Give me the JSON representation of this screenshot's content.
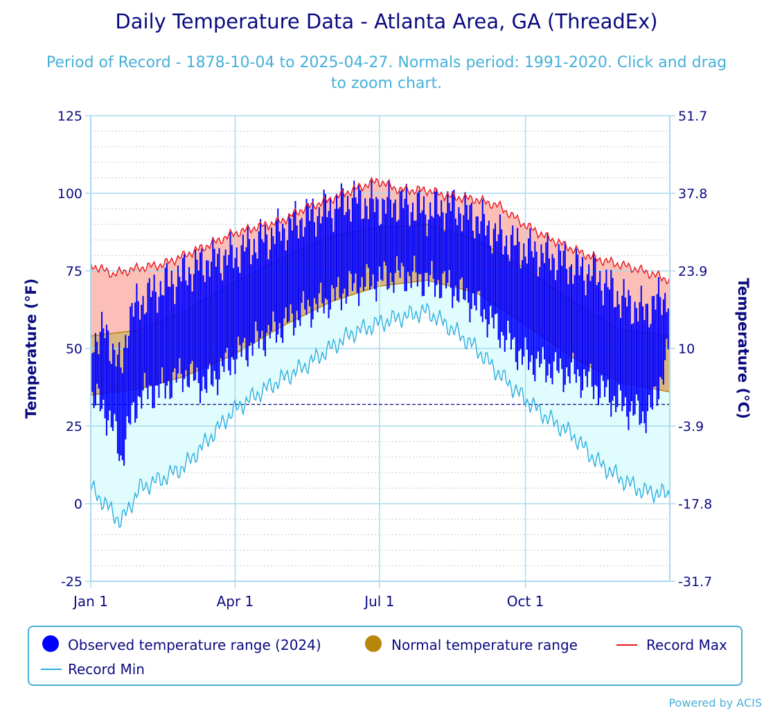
{
  "title": "Daily Temperature Data - Atlanta Area, GA (ThreadEx)",
  "subtitle": "Period of Record - 1878-10-04 to 2025-04-27. Normals period: 1991-2020. Click and drag to zoom chart.",
  "credit": "Powered by ACIS",
  "colors": {
    "observed": "#0000ff",
    "normal_fill": "#d9b783",
    "normal_line": "#b8860b",
    "record_max_fill": "#fbbfb8",
    "record_max_line": "#e8141c",
    "record_min_fill": "#e0fcfc",
    "record_min_line": "#29aee0",
    "freezing_line": "#0a0a80",
    "axis_text": "#0a0a80"
  },
  "legend": [
    {
      "label": "Observed temperature range (2024)",
      "marker": "circle",
      "color": "#0000ff"
    },
    {
      "label": "Normal temperature range",
      "marker": "circle",
      "color": "#b8860b"
    },
    {
      "label": "Record Max",
      "marker": "line",
      "color": "#e8141c"
    },
    {
      "label": "Record Min",
      "marker": "line",
      "color": "#29aee0"
    }
  ],
  "chart_data": {
    "type": "area",
    "title": "Daily Temperature Data - Atlanta Area, GA (ThreadEx)",
    "ylabel": "Temperature (°F)",
    "ylabel_right": "Temperature (°C)",
    "ylim": [
      -25,
      125
    ],
    "y_ticks": [
      -25,
      0,
      25,
      50,
      75,
      100,
      125
    ],
    "y_ticks_right": [
      "-31.7",
      "-17.8",
      "-3.9",
      "10",
      "23.9",
      "37.8",
      "51.7"
    ],
    "x_ticks": [
      {
        "label": "Jan 1",
        "day": 1
      },
      {
        "label": "Apr 1",
        "day": 92
      },
      {
        "label": "Jul 1",
        "day": 183
      },
      {
        "label": "Oct 1",
        "day": 275
      }
    ],
    "x_range_days": [
      1,
      366
    ],
    "freezing_line_f": 32,
    "grid": true,
    "legend_position": "bottom",
    "series": [
      {
        "name": "Record Max",
        "kind": "line",
        "x": [
          1,
          15,
          32,
          46,
          60,
          74,
          91,
          105,
          121,
          135,
          152,
          166,
          176,
          182,
          196,
          213,
          227,
          244,
          258,
          274,
          288,
          305,
          319,
          335,
          349,
          366
        ],
        "values": [
          77,
          74,
          76,
          77,
          80,
          83,
          87,
          89,
          91,
          95,
          98,
          101,
          103,
          104,
          101,
          101,
          99,
          98,
          96,
          90,
          86,
          82,
          79,
          77,
          75,
          72
        ]
      },
      {
        "name": "Record Min",
        "kind": "line",
        "x": [
          1,
          10,
          20,
          32,
          46,
          60,
          74,
          91,
          105,
          121,
          135,
          152,
          166,
          182,
          196,
          213,
          227,
          244,
          258,
          274,
          288,
          305,
          319,
          335,
          349,
          366
        ],
        "values": [
          5,
          0,
          -6,
          5,
          8,
          12,
          20,
          30,
          35,
          40,
          44,
          50,
          55,
          58,
          60,
          62,
          57,
          50,
          42,
          34,
          28,
          22,
          14,
          8,
          4,
          3
        ]
      },
      {
        "name": "Normal temperature range",
        "kind": "band",
        "x": [
          1,
          32,
          60,
          91,
          121,
          152,
          182,
          213,
          244,
          274,
          305,
          335,
          366
        ],
        "low": [
          35,
          37,
          41,
          48,
          57,
          65,
          70,
          72,
          68,
          58,
          47,
          39,
          36
        ],
        "high": [
          54,
          56,
          62,
          71,
          79,
          86,
          89,
          90,
          85,
          76,
          65,
          56,
          54
        ]
      },
      {
        "name": "Observed temperature range (2024)",
        "kind": "daily_range",
        "x": [
          1,
          10,
          17,
          20,
          25,
          32,
          46,
          60,
          74,
          91,
          105,
          121,
          135,
          152,
          166,
          182,
          196,
          213,
          227,
          244,
          258,
          274,
          288,
          300,
          305,
          319,
          335,
          349,
          355,
          366
        ],
        "low": [
          35,
          30,
          22,
          14,
          25,
          35,
          37,
          42,
          38,
          47,
          52,
          57,
          62,
          66,
          70,
          72,
          74,
          72,
          70,
          64,
          56,
          47,
          44,
          42,
          42,
          38,
          32,
          28,
          31,
          50
        ],
        "high": [
          53,
          55,
          48,
          42,
          60,
          65,
          70,
          74,
          78,
          80,
          84,
          88,
          92,
          95,
          98,
          96,
          97,
          94,
          96,
          92,
          86,
          82,
          80,
          78,
          76,
          74,
          66,
          62,
          64,
          68
        ]
      }
    ]
  }
}
